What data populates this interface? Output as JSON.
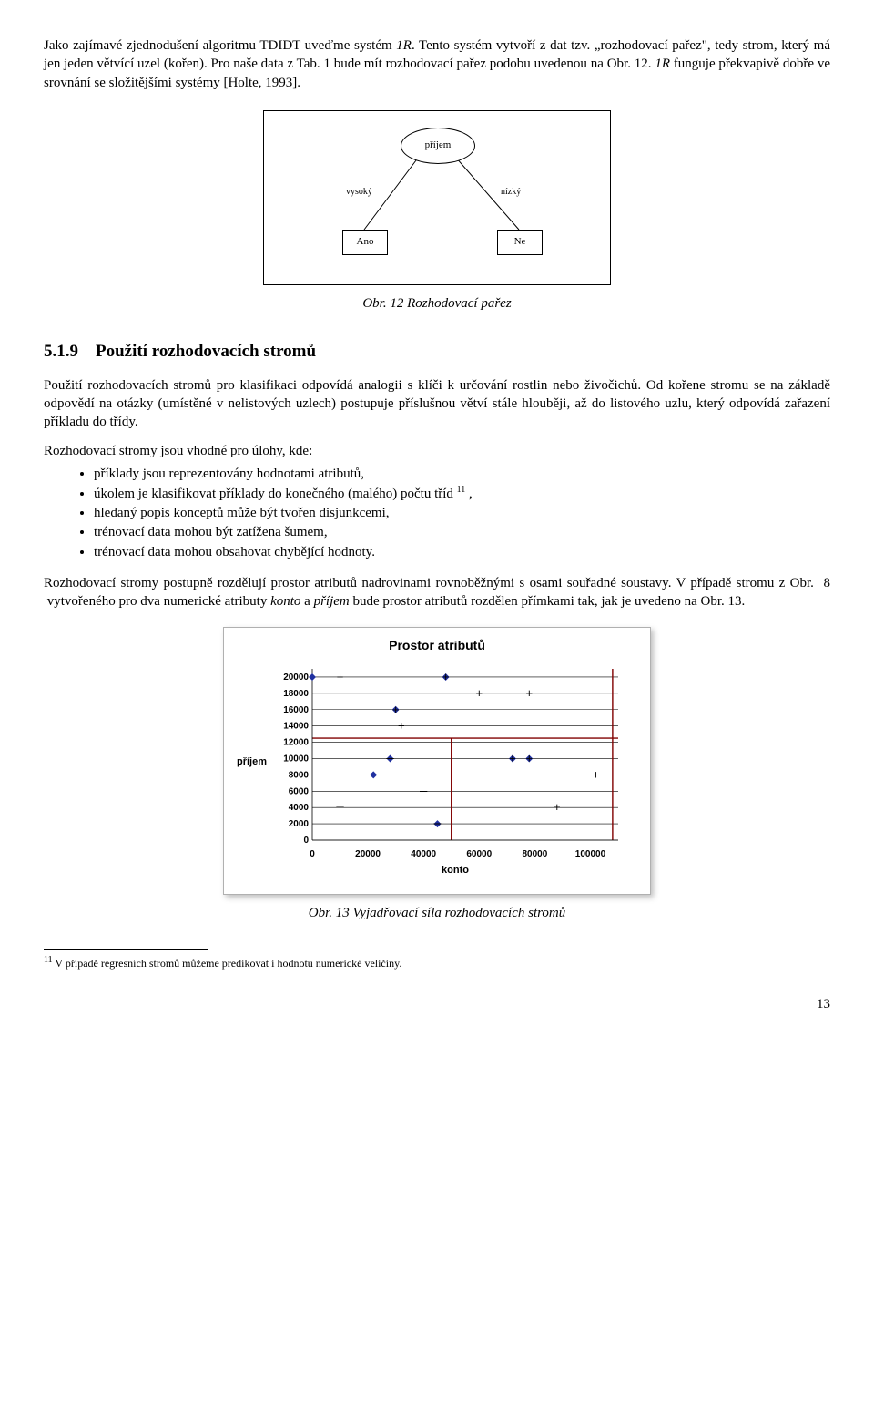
{
  "para1_a": "Jako zajímavé zjednodušení algoritmu TDIDT uveďme systém ",
  "para1_b": "1R",
  "para1_c": ". Tento systém vytvoří z dat tzv. „rozhodovací pařez\", tedy strom, který má jen jeden větvící uzel (kořen). Pro naše data z Tab. 1 bude mít rozhodovací pařez podobu uvedenou na Obr. 12. ",
  "para1_d": "1R",
  "para1_e": " funguje překvapivě dobře ve srovnání se složitějšími systémy [Holte, 1993].",
  "fig12": {
    "root": "příjem",
    "edge_left": "vysoký",
    "edge_right": "nízký",
    "leaf_left": "Ano",
    "leaf_right": "Ne",
    "caption": "Obr. 12 Rozhodovací pařez"
  },
  "section_num": "5.1.9",
  "section_title": "Použití rozhodovacích stromů",
  "para2": "Použití rozhodovacích stromů pro klasifikaci odpovídá analogii s klíči k určování rostlin nebo živočichů. Od kořene stromu se na základě odpovědí na otázky (umístěné v nelistových uzlech) postupuje příslušnou větví stále hlouběji, až do listového uzlu, který odpovídá zařazení příkladu do třídy.",
  "list_intro": "Rozhodovací stromy jsou vhodné pro úlohy, kde:",
  "bullets": [
    "příklady jsou reprezentovány hodnotami atributů,",
    "úkolem je klasifikovat příklady do konečného (malého) počtu tříd ",
    "hledaný popis konceptů může být tvořen disjunkcemi,",
    "trénovací data mohou být zatížena šumem,",
    "trénovací data mohou obsahovat chybějící hodnoty."
  ],
  "bullet2_sup": "11",
  "bullet2_tail": " ,",
  "para3_a": "Rozhodovací stromy postupně rozdělují prostor atributů nadrovinami rovnoběžnými s osami souřadné soustavy. V případě stromu z Obr.  8  vytvořeného pro dva numerické atributy ",
  "para3_b": "konto",
  "para3_c": " a ",
  "para3_d": "příjem",
  "para3_e": " bude prostor atributů rozdělen přímkami tak, jak je uvedeno na Obr. 13.",
  "fig13": {
    "title": "Prostor atributů",
    "ylabel": "příjem",
    "xlabel": "konto",
    "caption": "Obr. 13 Vyjadřovací síla rozhodovacích stromů",
    "xlim": [
      0,
      110000
    ],
    "ylim": [
      0,
      21000
    ],
    "xticks": [
      0,
      20000,
      40000,
      60000,
      80000,
      100000
    ],
    "yticks": [
      0,
      2000,
      4000,
      6000,
      8000,
      10000,
      12000,
      14000,
      16000,
      18000,
      20000
    ],
    "grid_color": "#000000",
    "y_partition": 12500,
    "x_partition": 50000,
    "series_plus": {
      "color": "#000000",
      "points": [
        [
          10000,
          20000
        ],
        [
          30000,
          16000
        ],
        [
          32000,
          14000
        ],
        [
          48000,
          20000
        ],
        [
          60000,
          18000
        ],
        [
          78000,
          18000
        ],
        [
          72000,
          10000
        ],
        [
          78000,
          10000
        ],
        [
          88000,
          4000
        ],
        [
          102000,
          8000
        ]
      ]
    },
    "series_minus": {
      "color": "#000000",
      "points": [
        [
          10000,
          4000
        ],
        [
          22000,
          8000
        ],
        [
          28000,
          10000
        ],
        [
          40000,
          6000
        ],
        [
          45000,
          2000
        ]
      ]
    },
    "diamond_color": "#2030a0",
    "diamond_points": [
      [
        0,
        20000
      ],
      [
        30000,
        16000
      ],
      [
        48000,
        20000
      ],
      [
        72000,
        10000
      ],
      [
        78000,
        10000
      ],
      [
        22000,
        8000
      ],
      [
        28000,
        10000
      ],
      [
        45000,
        2000
      ]
    ]
  },
  "footnote_num": "11",
  "footnote_text": " V případě regresních stromů můžeme predikovat i hodnotu numerické veličiny.",
  "page_number": "13"
}
